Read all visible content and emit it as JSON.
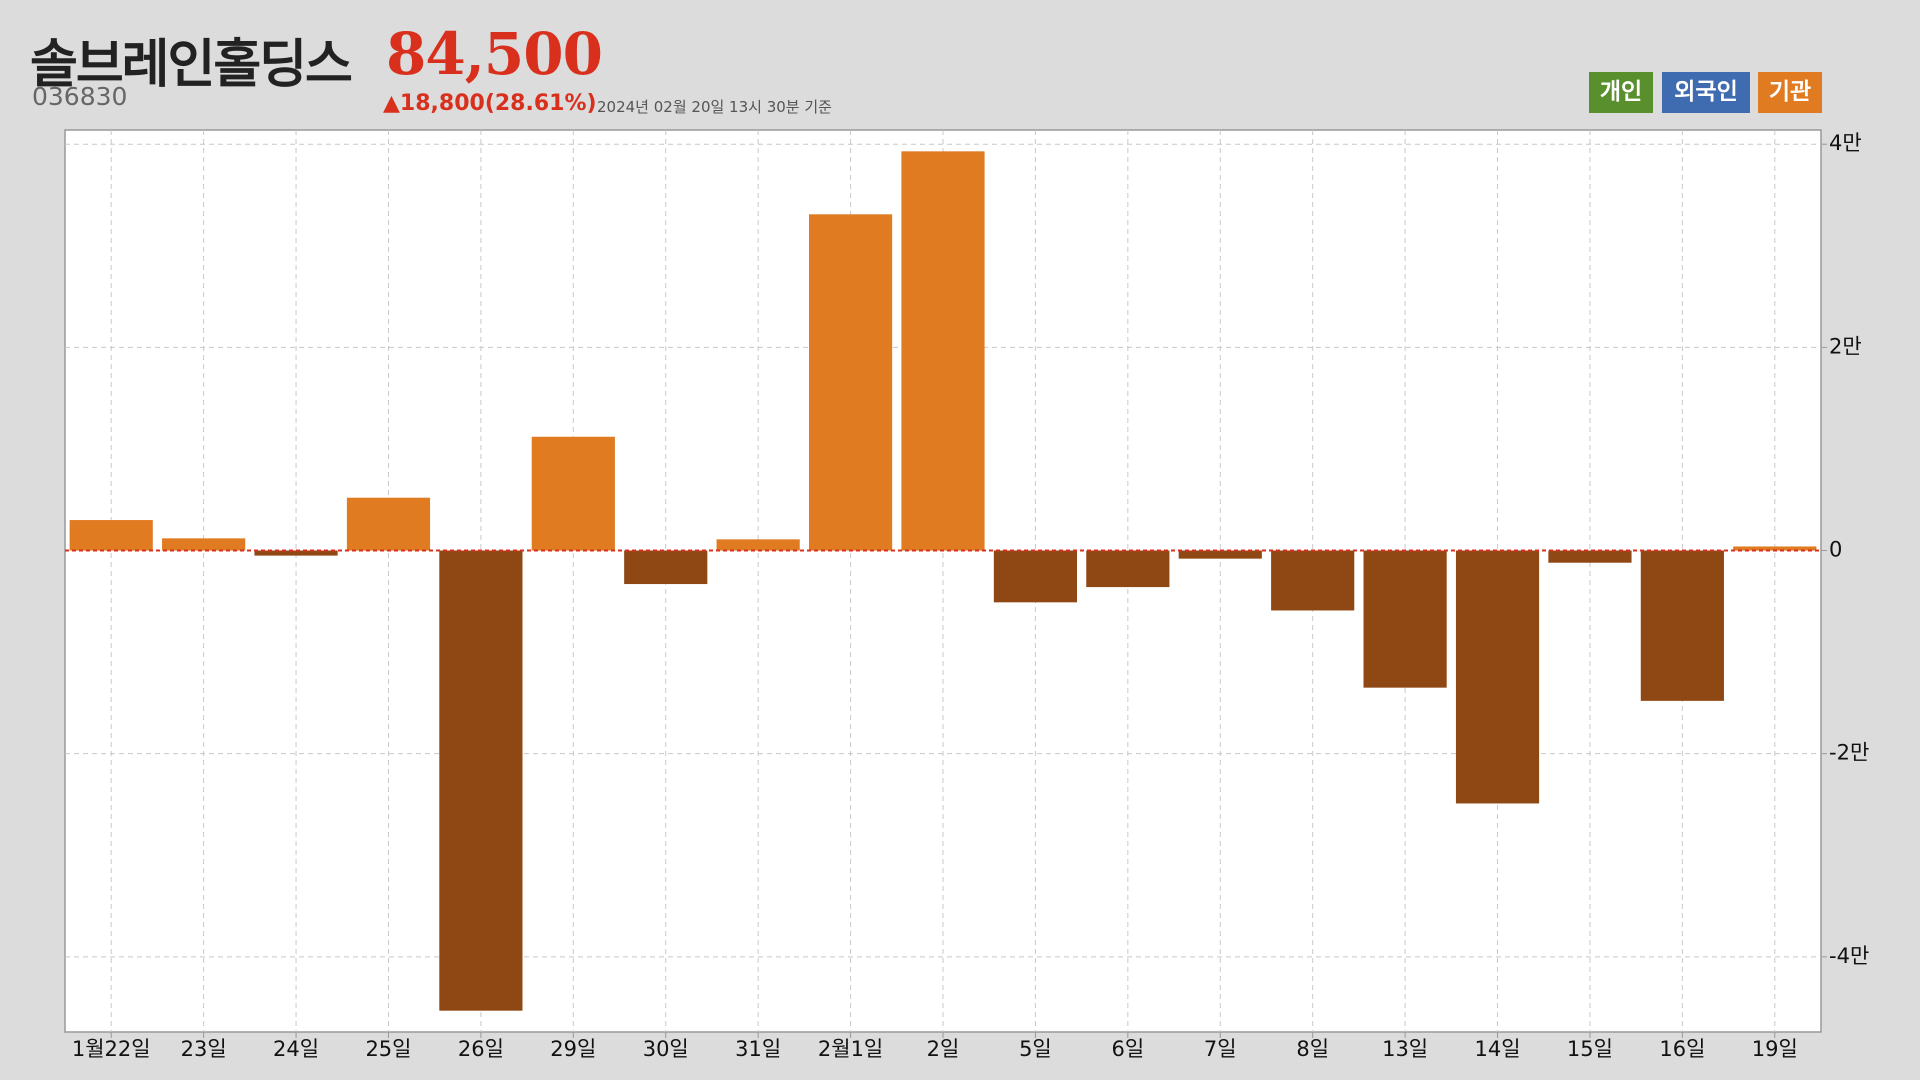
{
  "header": {
    "title": "솔브레인홀딩스",
    "price": "84,500",
    "code": "036830",
    "change": "▲18,800(28.61%)",
    "timestamp": "2024년 02월 20일 13시 30분 기준"
  },
  "buttons": [
    {
      "label": "개인",
      "color": "#5a8f2e"
    },
    {
      "label": "외국인",
      "color": "#3f6bb0"
    },
    {
      "label": "기관",
      "color": "#e07b22"
    }
  ],
  "chart_data": {
    "type": "bar",
    "categories": [
      "1월22일",
      "23일",
      "24일",
      "25일",
      "26일",
      "29일",
      "30일",
      "31일",
      "2월1일",
      "2일",
      "5일",
      "6일",
      "7일",
      "8일",
      "13일",
      "14일",
      "15일",
      "16일",
      "19일"
    ],
    "values": [
      3000,
      1200,
      -500,
      5200,
      -45300,
      11200,
      -3300,
      1100,
      33100,
      39300,
      -5100,
      -3600,
      -800,
      -5900,
      -13500,
      -24900,
      -1200,
      -14800,
      400
    ],
    "color": "#e07b22",
    "negative_color": "#8f4813",
    "ylim": [
      -47400,
      41400
    ],
    "yticks": [
      {
        "value": -40000,
        "label": "-4만"
      },
      {
        "value": -20000,
        "label": "-2만"
      },
      0,
      {
        "value": 20000,
        "label": "2만"
      },
      {
        "value": 40000,
        "label": "4만"
      }
    ],
    "grid": true,
    "zero_line_color": "#d9301e"
  }
}
